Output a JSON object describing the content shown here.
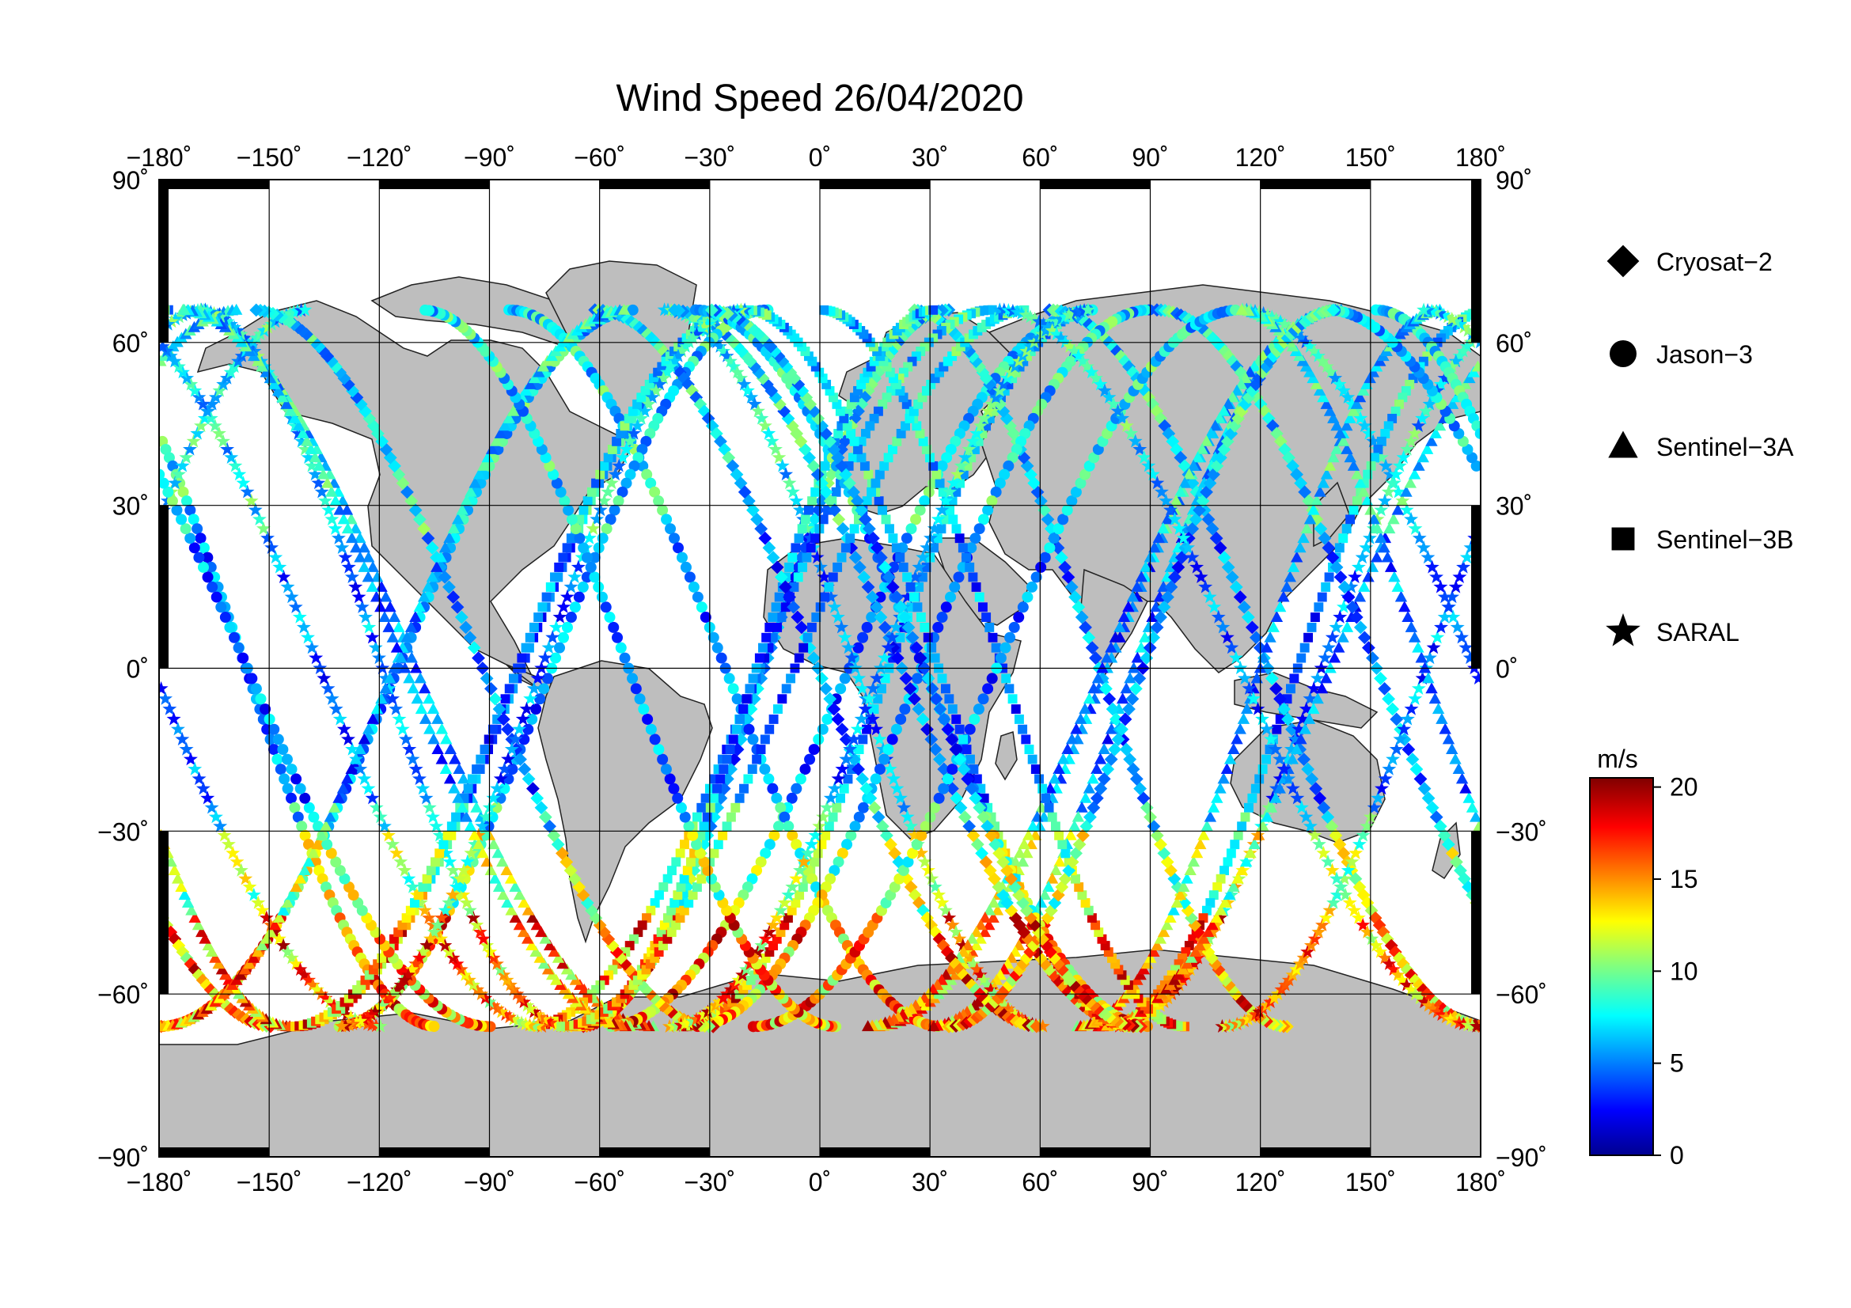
{
  "title": "Wind Speed 26/04/2020",
  "lon_ticks": [
    "−180˚",
    "−150˚",
    "−120˚",
    "−90˚",
    "−60˚",
    "−30˚",
    "0˚",
    "30˚",
    "60˚",
    "90˚",
    "120˚",
    "150˚",
    "180˚"
  ],
  "lat_ticks": [
    "90˚",
    "60˚",
    "30˚",
    "0˚",
    "−30˚",
    "−60˚",
    "−90˚"
  ],
  "legend": [
    {
      "label": "Cryosat−2",
      "icon": "diamond-icon"
    },
    {
      "label": "Jason−3",
      "icon": "circle-icon"
    },
    {
      "label": "Sentinel−3A",
      "icon": "triangle-icon"
    },
    {
      "label": "Sentinel−3B",
      "icon": "square-icon"
    },
    {
      "label": "SARAL",
      "icon": "star-icon"
    }
  ],
  "colorbar": {
    "unit": "m/s",
    "ticks": [
      "20",
      "15",
      "10",
      "5",
      "0"
    ],
    "min": 0,
    "max": 20.5
  },
  "colors": {
    "land": "#bebebe",
    "ocean": "#ffffff",
    "frame": "#000000"
  }
}
